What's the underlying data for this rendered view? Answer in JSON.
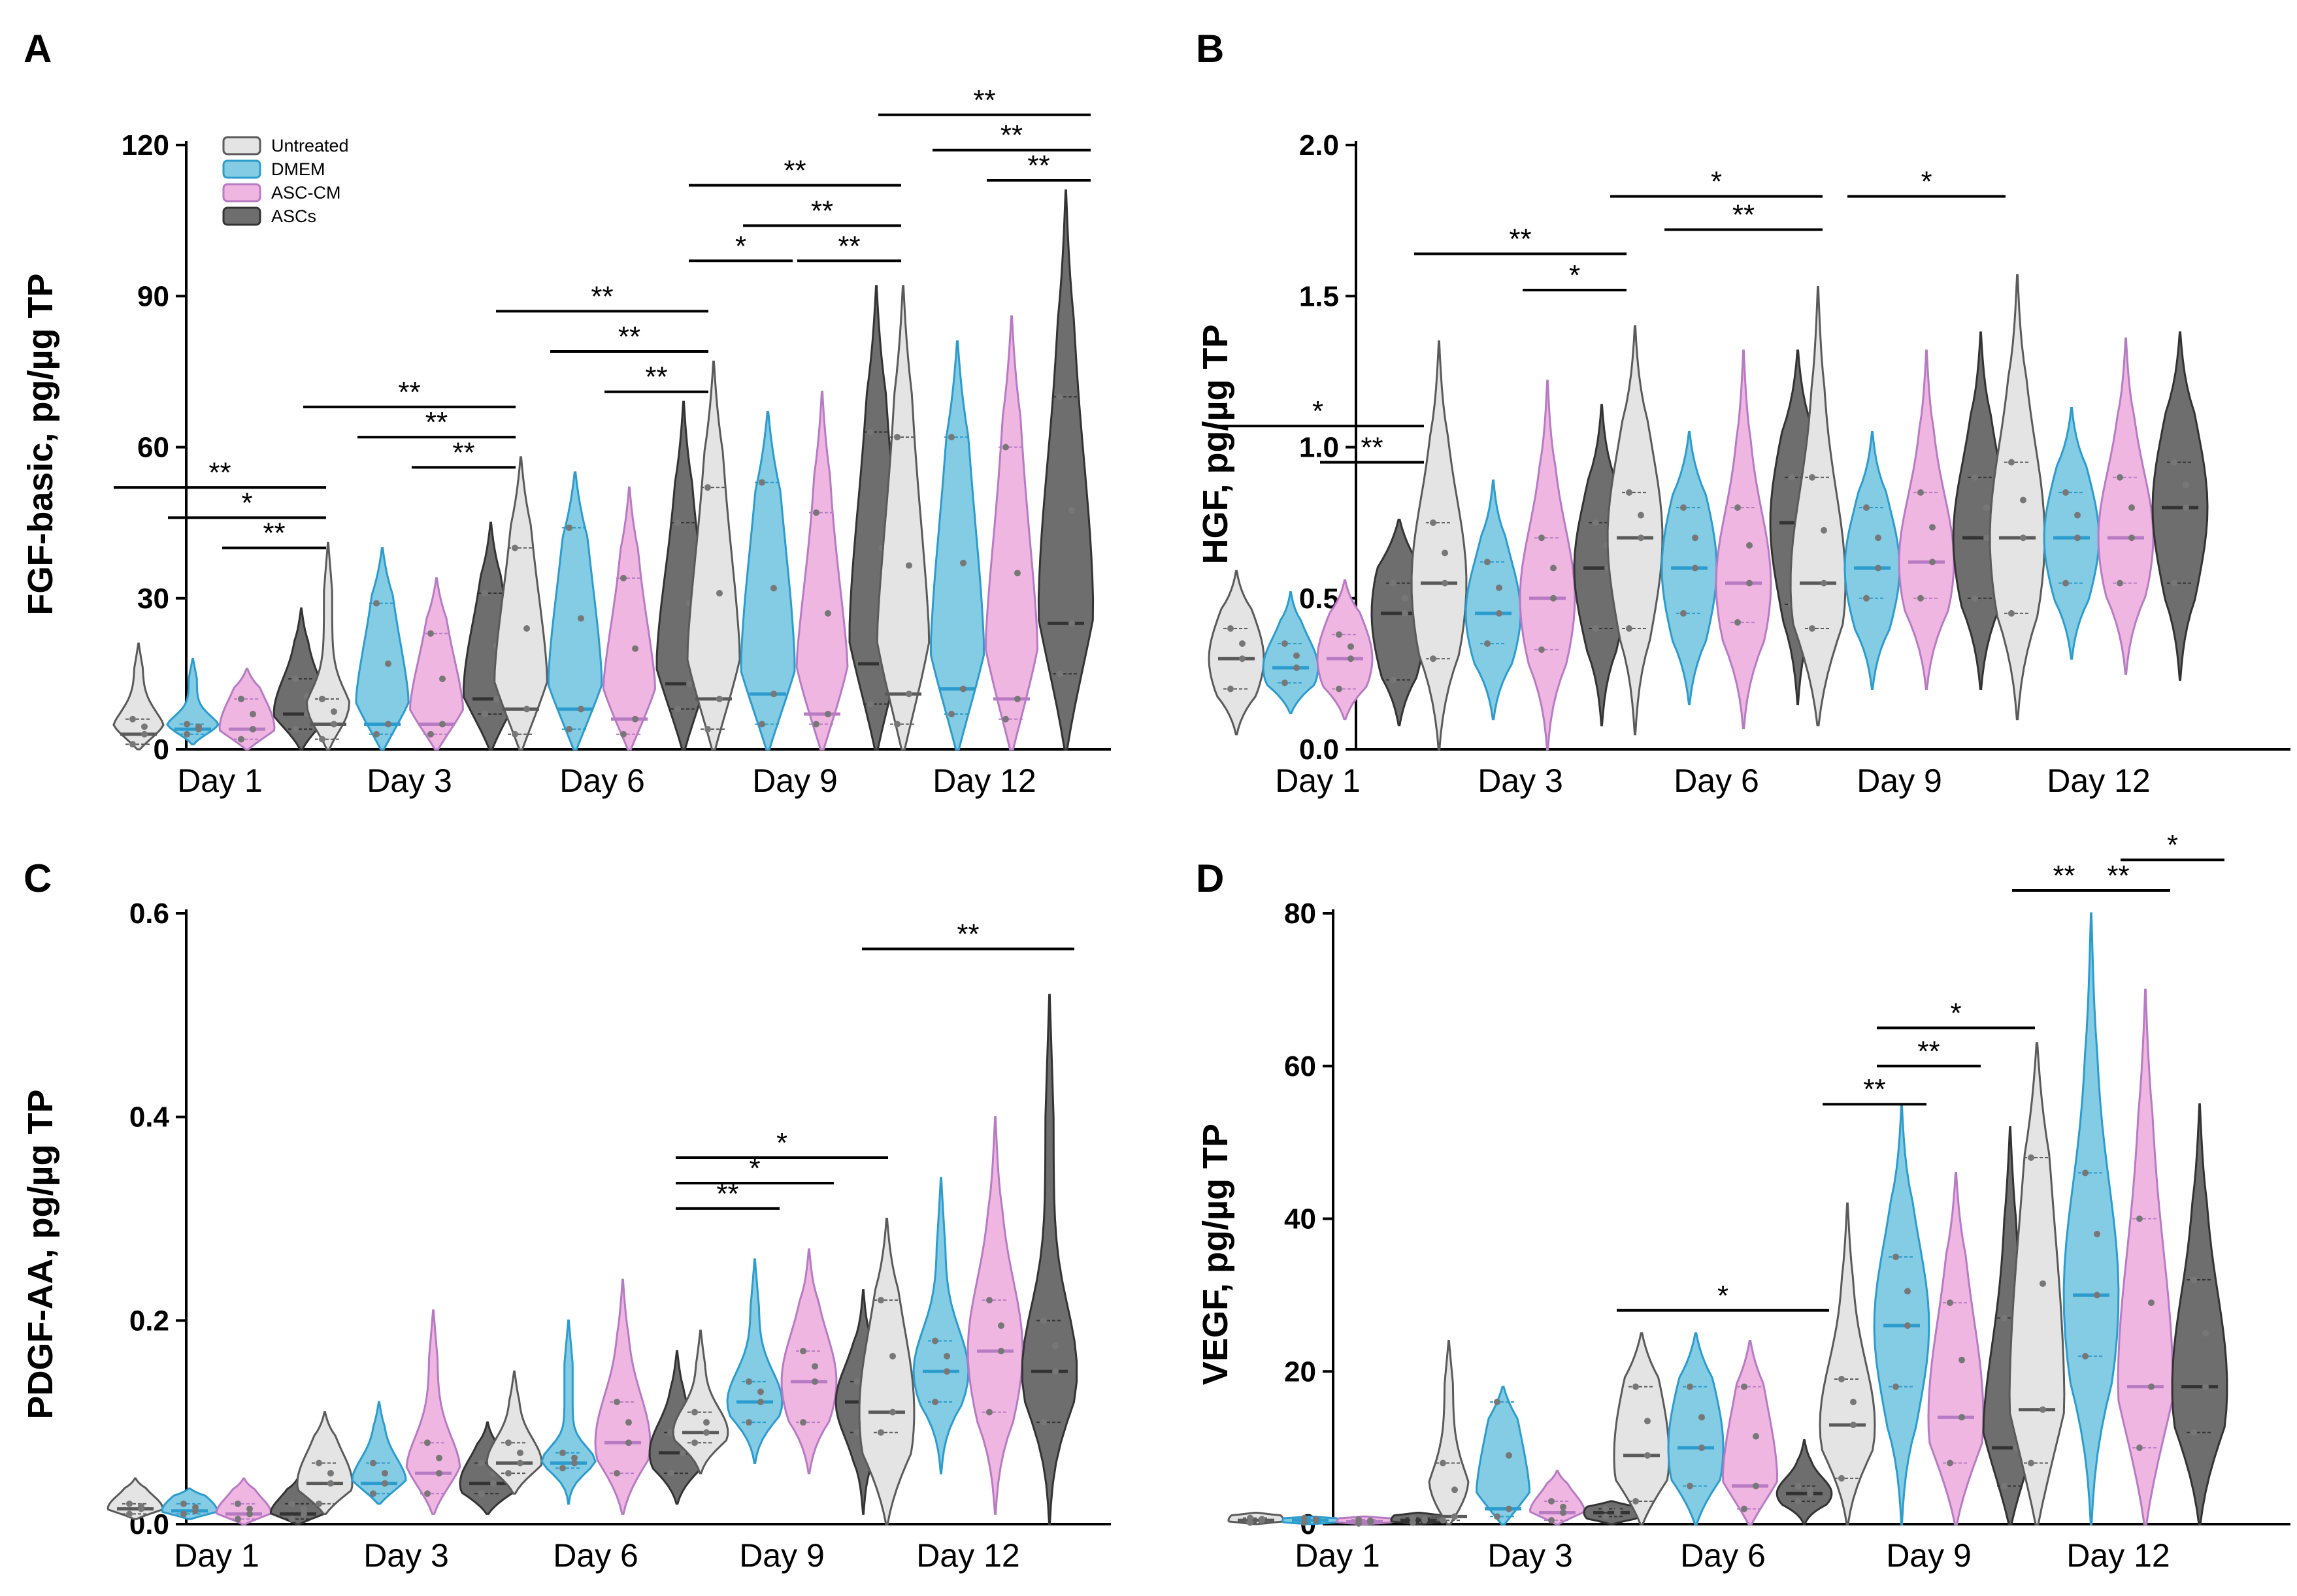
{
  "legend": {
    "groups": [
      "Untreated",
      "DMEM",
      "ASC-CM",
      "ASCs"
    ],
    "fills": [
      "#e4e4e4",
      "#84cbe4",
      "#f0b6e2",
      "#6e6e6e"
    ],
    "strokes": [
      "#5a5a5a",
      "#2b9ccd",
      "#b77bc4",
      "#333333"
    ]
  },
  "chart_data": [
    {
      "type": "violin",
      "panel": "A",
      "ylabel": "FGF-basic, pg/µg TP",
      "ylim": [
        0,
        120
      ],
      "yticks": [
        "0",
        "30",
        "60",
        "90",
        "120"
      ],
      "categories": [
        "Day 1",
        "Day 3",
        "Day 6",
        "Day 9",
        "Day 12"
      ],
      "series": [
        {
          "name": "Untreated",
          "medians": [
            3,
            5,
            8,
            10,
            11
          ],
          "q1": [
            1,
            2,
            3,
            4,
            5
          ],
          "q3": [
            6,
            10,
            40,
            52,
            62
          ],
          "mins": [
            0,
            0,
            0,
            0,
            0
          ],
          "maxs": [
            21,
            41,
            58,
            77,
            92
          ]
        },
        {
          "name": "DMEM",
          "medians": [
            4,
            5,
            8,
            11,
            12
          ],
          "q1": [
            3,
            3,
            4,
            5,
            7
          ],
          "q3": [
            5,
            29,
            44,
            53,
            62
          ],
          "mins": [
            1,
            0,
            0,
            0,
            0
          ],
          "maxs": [
            18,
            40,
            55,
            67,
            81
          ]
        },
        {
          "name": "ASC-CM",
          "medians": [
            4,
            5,
            6,
            7,
            10
          ],
          "q1": [
            2,
            3,
            3,
            5,
            6
          ],
          "q3": [
            10,
            23,
            34,
            47,
            60
          ],
          "mins": [
            0,
            0,
            0,
            0,
            0
          ],
          "maxs": [
            16,
            34,
            52,
            71,
            86
          ]
        },
        {
          "name": "ASCs",
          "medians": [
            7,
            10,
            13,
            17,
            25
          ],
          "q1": [
            4,
            7,
            8,
            9,
            15
          ],
          "q3": [
            14,
            31,
            45,
            63,
            70
          ],
          "mins": [
            0,
            0,
            0,
            0,
            0
          ],
          "maxs": [
            28,
            45,
            69,
            92,
            111
          ]
        }
      ],
      "significance": [
        {
          "day": 0,
          "from": 0,
          "to": 3,
          "label": "**",
          "y": 52
        },
        {
          "day": 0,
          "from": 1,
          "to": 3,
          "label": "*",
          "y": 46
        },
        {
          "day": 0,
          "from": 2,
          "to": 3,
          "label": "**",
          "y": 40
        },
        {
          "day": 1,
          "from": 0,
          "to": 3,
          "label": "**",
          "y": 68
        },
        {
          "day": 1,
          "from": 1,
          "to": 3,
          "label": "**",
          "y": 62
        },
        {
          "day": 1,
          "from": 2,
          "to": 3,
          "label": "**",
          "y": 56
        },
        {
          "day": 2,
          "from": 0,
          "to": 3,
          "label": "**",
          "y": 87
        },
        {
          "day": 2,
          "from": 1,
          "to": 3,
          "label": "**",
          "y": 79
        },
        {
          "day": 2,
          "from": 2,
          "to": 3,
          "label": "**",
          "y": 71
        },
        {
          "day": 3,
          "from": 0,
          "to": 3,
          "label": "**",
          "y": 112
        },
        {
          "day": 3,
          "from": 1,
          "to": 3,
          "label": "**",
          "y": 104
        },
        {
          "day": 3,
          "from": 0,
          "to": 1,
          "label": "*",
          "y": 97
        },
        {
          "day": 3,
          "from": 2,
          "to": 3,
          "label": "**",
          "y": 97
        },
        {
          "day": 4,
          "from": 0,
          "to": 3,
          "label": "**",
          "y": 126
        },
        {
          "day": 4,
          "from": 1,
          "to": 3,
          "label": "**",
          "y": 119
        },
        {
          "day": 4,
          "from": 2,
          "to": 3,
          "label": "**",
          "y": 113
        }
      ]
    },
    {
      "type": "violin",
      "panel": "B",
      "ylabel": "HGF, pg/µg TP",
      "ylim": [
        0,
        2.0
      ],
      "yticks": [
        "0.0",
        "0.5",
        "1.0",
        "1.5",
        "2.0"
      ],
      "categories": [
        "Day 1",
        "Day 3",
        "Day 6",
        "Day 9",
        "Day 12"
      ],
      "series": [
        {
          "name": "Untreated",
          "medians": [
            0.3,
            0.55,
            0.7,
            0.55,
            0.7
          ],
          "q1": [
            0.2,
            0.3,
            0.4,
            0.4,
            0.45
          ],
          "q3": [
            0.4,
            0.75,
            0.85,
            0.9,
            0.95
          ],
          "mins": [
            0.05,
            0.0,
            0.05,
            0.08,
            0.1
          ],
          "maxs": [
            0.59,
            1.35,
            1.4,
            1.53,
            1.57
          ]
        },
        {
          "name": "DMEM",
          "medians": [
            0.27,
            0.45,
            0.6,
            0.6,
            0.7
          ],
          "q1": [
            0.22,
            0.35,
            0.45,
            0.5,
            0.55
          ],
          "q3": [
            0.35,
            0.62,
            0.8,
            0.8,
            0.85
          ],
          "mins": [
            0.12,
            0.1,
            0.15,
            0.2,
            0.3
          ],
          "maxs": [
            0.52,
            0.89,
            1.05,
            1.05,
            1.13
          ]
        },
        {
          "name": "ASC-CM",
          "medians": [
            0.3,
            0.5,
            0.55,
            0.62,
            0.7
          ],
          "q1": [
            0.2,
            0.33,
            0.42,
            0.5,
            0.55
          ],
          "q3": [
            0.38,
            0.7,
            0.8,
            0.85,
            0.9
          ],
          "mins": [
            0.1,
            0.0,
            0.07,
            0.2,
            0.25
          ],
          "maxs": [
            0.56,
            1.22,
            1.32,
            1.32,
            1.36
          ]
        },
        {
          "name": "ASCs",
          "medians": [
            0.45,
            0.6,
            0.75,
            0.7,
            0.8
          ],
          "q1": [
            0.23,
            0.4,
            0.48,
            0.5,
            0.55
          ],
          "q3": [
            0.55,
            0.75,
            0.9,
            0.9,
            0.95
          ],
          "mins": [
            0.08,
            0.08,
            0.15,
            0.2,
            0.23
          ],
          "maxs": [
            0.76,
            1.14,
            1.32,
            1.38,
            1.38
          ]
        }
      ],
      "significance": [
        {
          "day": 0,
          "from": 0,
          "to": 3,
          "label": "*",
          "y": 1.07
        },
        {
          "day": 0,
          "from": 2,
          "to": 3,
          "label": "**",
          "y": 0.95
        },
        {
          "day": 1,
          "from": 0,
          "to": 3,
          "label": "**",
          "y": 1.64
        },
        {
          "day": 1,
          "from": 2,
          "to": 3,
          "label": "*",
          "y": 1.52
        },
        {
          "day": 2,
          "from": 0,
          "to": 3,
          "label": "*",
          "y": 1.83
        },
        {
          "day": 2,
          "from": 1,
          "to": 3,
          "label": "**",
          "y": 1.72
        },
        {
          "day": 3,
          "from": 1,
          "to": 3,
          "label": "*",
          "y": 1.83
        }
      ]
    },
    {
      "type": "violin",
      "panel": "C",
      "ylabel": "PDGF-AA, pg/µg TP",
      "ylim": [
        0,
        0.6
      ],
      "yticks": [
        "0.0",
        "0.2",
        "0.4",
        "0.6"
      ],
      "categories": [
        "Day 1",
        "Day 3",
        "Day 6",
        "Day 9",
        "Day 12"
      ],
      "series": [
        {
          "name": "Untreated",
          "medians": [
            0.015,
            0.04,
            0.06,
            0.09,
            0.11
          ],
          "q1": [
            0.01,
            0.02,
            0.05,
            0.08,
            0.09
          ],
          "q3": [
            0.02,
            0.06,
            0.08,
            0.11,
            0.22
          ],
          "mins": [
            0.005,
            0.01,
            0.03,
            0.05,
            0.0
          ],
          "maxs": [
            0.045,
            0.11,
            0.15,
            0.19,
            0.3
          ]
        },
        {
          "name": "DMEM",
          "medians": [
            0.013,
            0.04,
            0.06,
            0.12,
            0.15
          ],
          "q1": [
            0.01,
            0.03,
            0.055,
            0.1,
            0.12
          ],
          "q3": [
            0.02,
            0.06,
            0.07,
            0.14,
            0.18
          ],
          "mins": [
            0.005,
            0.02,
            0.02,
            0.06,
            0.05
          ],
          "maxs": [
            0.035,
            0.12,
            0.2,
            0.26,
            0.34
          ]
        },
        {
          "name": "ASC-CM",
          "medians": [
            0.01,
            0.05,
            0.08,
            0.14,
            0.17
          ],
          "q1": [
            0.005,
            0.03,
            0.05,
            0.1,
            0.11
          ],
          "q3": [
            0.02,
            0.08,
            0.12,
            0.17,
            0.22
          ],
          "mins": [
            0.0,
            0.01,
            0.01,
            0.05,
            0.01
          ],
          "maxs": [
            0.045,
            0.21,
            0.24,
            0.27,
            0.4
          ]
        },
        {
          "name": "ASCs",
          "medians": [
            0.01,
            0.04,
            0.07,
            0.12,
            0.15
          ],
          "q1": [
            0.005,
            0.03,
            0.05,
            0.09,
            0.1
          ],
          "q3": [
            0.02,
            0.06,
            0.09,
            0.14,
            0.2
          ],
          "mins": [
            0.0,
            0.01,
            0.02,
            0.01,
            0.0
          ],
          "maxs": [
            0.045,
            0.1,
            0.17,
            0.23,
            0.52
          ]
        }
      ],
      "significance": [
        {
          "day": 3,
          "from": 0,
          "to": 3,
          "label": "*",
          "y": 0.36
        },
        {
          "day": 3,
          "from": 0,
          "to": 2,
          "label": "*",
          "y": 0.335
        },
        {
          "day": 3,
          "from": 0,
          "to": 1,
          "label": "**",
          "y": 0.31
        },
        {
          "day": 4,
          "from": 0,
          "to": 3,
          "label": "**",
          "y": 0.565
        }
      ]
    },
    {
      "type": "violin",
      "panel": "D",
      "ylabel": "VEGF, pg/µg TP",
      "ylim": [
        0,
        80
      ],
      "yticks": [
        "0",
        "20",
        "40",
        "60",
        "80"
      ],
      "categories": [
        "Day 1",
        "Day 3",
        "Day 6",
        "Day 9",
        "Day 12"
      ],
      "series": [
        {
          "name": "Untreated",
          "medians": [
            0.5,
            1,
            9,
            13,
            15
          ],
          "q1": [
            0.2,
            0.5,
            3,
            6,
            8
          ],
          "q3": [
            0.8,
            8,
            18,
            19,
            48
          ],
          "mins": [
            0,
            0,
            0,
            0,
            0
          ],
          "maxs": [
            1.5,
            24,
            25,
            42,
            63
          ]
        },
        {
          "name": "DMEM",
          "medians": [
            0.5,
            2,
            10,
            26,
            30
          ],
          "q1": [
            0.2,
            1,
            5,
            18,
            22
          ],
          "q3": [
            0.8,
            16,
            18,
            35,
            46
          ],
          "mins": [
            0,
            0,
            0,
            0,
            0
          ],
          "maxs": [
            1.0,
            18,
            25,
            55,
            80
          ]
        },
        {
          "name": "ASC-CM",
          "medians": [
            0.3,
            1.5,
            5,
            14,
            18
          ],
          "q1": [
            0.1,
            0.5,
            2,
            8,
            10
          ],
          "q3": [
            0.6,
            3,
            18,
            29,
            40
          ],
          "mins": [
            0,
            0,
            0,
            0,
            0
          ],
          "maxs": [
            1.0,
            7,
            24,
            46,
            70
          ]
        },
        {
          "name": "ASCs",
          "medians": [
            0.5,
            1.5,
            4,
            10,
            18
          ],
          "q1": [
            0.2,
            1,
            3,
            5,
            12
          ],
          "q3": [
            0.8,
            2,
            5,
            27,
            32
          ],
          "mins": [
            0,
            0,
            0,
            0,
            0
          ],
          "maxs": [
            1.5,
            3,
            11,
            52,
            55
          ]
        }
      ],
      "significance": [
        {
          "day": 2,
          "from": 0,
          "to": 3,
          "label": "*",
          "y": 28
        },
        {
          "day": 3,
          "from": 1,
          "to": 3,
          "label": "*",
          "y": 65
        },
        {
          "day": 3,
          "from": 1,
          "to": 2,
          "label": "**",
          "y": 60
        },
        {
          "day": 3,
          "from": 0,
          "to": 1,
          "label": "**",
          "y": 55
        },
        {
          "day": 4,
          "from": 2,
          "to": 3,
          "label": "*",
          "y": 87
        },
        {
          "day": 4,
          "from": 0,
          "to": 1,
          "label": "**",
          "y": 83
        },
        {
          "day": 4,
          "from": 1,
          "to": 2,
          "label": "**",
          "y": 83
        }
      ]
    }
  ]
}
